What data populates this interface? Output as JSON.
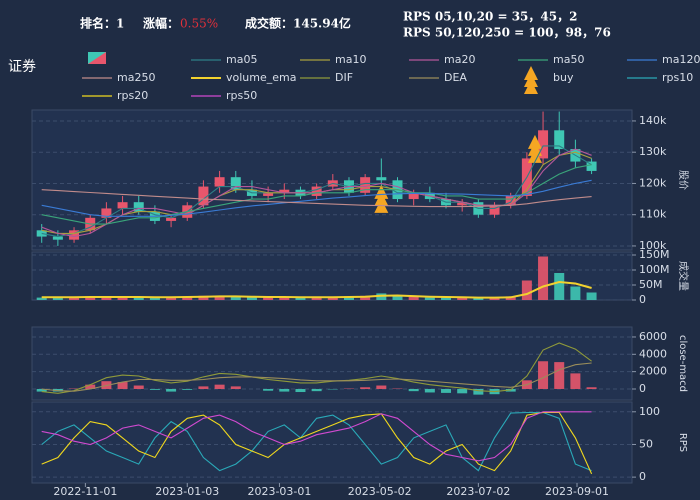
{
  "header": {
    "title": "证券",
    "rank": "排名：1",
    "change_label": "涨幅：",
    "change": "0.55%",
    "turnover": "成交额：145.94亿",
    "rps_short": "RPS 05,10,20 = 35，45，2",
    "rps_long": "RPS 50,120,250 = 100，98，76"
  },
  "chart_data": {
    "type": "stock",
    "x": [
      "2022-10-05",
      "2022-10-15",
      "2022-10-25",
      "2022-11-04",
      "2022-11-14",
      "2022-11-24",
      "2022-12-04",
      "2022-12-14",
      "2022-12-24",
      "2023-01-03",
      "2023-01-13",
      "2023-01-23",
      "2023-02-02",
      "2023-02-12",
      "2023-02-22",
      "2023-03-04",
      "2023-03-14",
      "2023-03-24",
      "2023-04-03",
      "2023-04-13",
      "2023-04-23",
      "2023-05-03",
      "2023-05-13",
      "2023-05-23",
      "2023-06-02",
      "2023-06-12",
      "2023-06-22",
      "2023-07-02",
      "2023-07-12",
      "2023-07-22",
      "2023-08-01",
      "2023-08-11",
      "2023-08-21",
      "2023-08-31",
      "2023-09-10"
    ],
    "xlim": [
      "2022-09-29",
      "2023-10-05"
    ],
    "xticks": [
      "2022-11-01",
      "2023-01-03",
      "2023-03-01",
      "2023-05-02",
      "2023-07-02",
      "2023-09-01"
    ],
    "panels": [
      {
        "type": "candlestick",
        "ylabel": "股价",
        "ylim": [
          98700,
          143500
        ],
        "yticks": [
          {
            "value": 100000,
            "label": "100k"
          },
          {
            "value": 110000,
            "label": "110k"
          },
          {
            "value": 120000,
            "label": "120k"
          },
          {
            "value": 130000,
            "label": "130k"
          },
          {
            "value": 140000,
            "label": "140k"
          }
        ],
        "up_color": "#e8566c",
        "down_color": "#3fc7b4",
        "open": [
          105000,
          103000,
          102000,
          105000,
          109000,
          112000,
          114000,
          111000,
          108000,
          109000,
          113000,
          119000,
          122000,
          118000,
          116000,
          117000,
          118000,
          116000,
          119000,
          121000,
          117000,
          122000,
          121000,
          115000,
          117000,
          115000,
          113000,
          114000,
          110000,
          113000,
          116000,
          128000,
          137000,
          131000,
          127000
        ],
        "high": [
          107000,
          105000,
          106000,
          110000,
          114000,
          116000,
          116000,
          113000,
          110000,
          114000,
          121000,
          124000,
          124000,
          121000,
          119000,
          120000,
          119000,
          120000,
          123000,
          122000,
          123000,
          128000,
          122000,
          118000,
          119000,
          117000,
          115000,
          115000,
          114000,
          117000,
          130000,
          143000,
          143000,
          134000,
          128000
        ],
        "low": [
          101000,
          100000,
          101000,
          104000,
          107000,
          110000,
          110000,
          107000,
          106000,
          108000,
          112000,
          117000,
          117000,
          115000,
          114000,
          115000,
          115000,
          115000,
          118000,
          116000,
          116000,
          119000,
          114000,
          113000,
          114000,
          112000,
          111000,
          109000,
          109000,
          112000,
          115000,
          126000,
          129000,
          125000,
          123000
        ],
        "close": [
          103000,
          102000,
          105000,
          109000,
          112000,
          114000,
          111000,
          108000,
          109000,
          113000,
          119000,
          122000,
          118000,
          116000,
          117000,
          118000,
          116000,
          119000,
          121000,
          117000,
          122000,
          121000,
          115000,
          117000,
          115000,
          113000,
          114000,
          110000,
          113000,
          116000,
          128000,
          137000,
          131000,
          127000,
          124000
        ],
        "series": [
          {
            "name": "ma05",
            "color": "#2e7f86",
            "values": [
              104000,
              103000,
              104000,
              106000,
              109000,
              112000,
              112000,
              110000,
              109000,
              111000,
              115000,
              119000,
              119000,
              117000,
              117000,
              117000,
              117000,
              118000,
              120000,
              119000,
              120000,
              120000,
              117000,
              117000,
              116000,
              114000,
              114000,
              112000,
              112000,
              114000,
              122000,
              132000,
              132000,
              129000,
              126000
            ]
          },
          {
            "name": "ma10",
            "color": "#a8a03e",
            "values": [
              105000,
              104000,
              104000,
              105000,
              107000,
              110000,
              111000,
              111000,
              110000,
              110000,
              113000,
              116000,
              118000,
              118000,
              117000,
              117000,
              117000,
              117000,
              118000,
              118000,
              119000,
              119000,
              118000,
              117000,
              116000,
              115000,
              114000,
              113000,
              113000,
              113000,
              118000,
              126000,
              129000,
              130000,
              128000
            ]
          },
          {
            "name": "ma20",
            "color": "#b4579a",
            "values": [
              106000,
              104000,
              103000,
              104000,
              107000,
              110000,
              112000,
              112000,
              111000,
              110000,
              113000,
              116000,
              119000,
              119000,
              118000,
              117000,
              117000,
              117000,
              118000,
              119000,
              119000,
              120000,
              119000,
              117000,
              116000,
              115000,
              114000,
              113000,
              113000,
              113000,
              117000,
              124000,
              129000,
              131000,
              129000
            ]
          },
          {
            "name": "ma50",
            "color": "#3aa57a",
            "values": [
              110000,
              109000,
              108000,
              107000,
              107000,
              108000,
              109000,
              109000,
              110000,
              111000,
              112000,
              113000,
              114000,
              115000,
              115000,
              116000,
              116000,
              117000,
              117000,
              117000,
              118000,
              118000,
              118000,
              117000,
              117000,
              116000,
              116000,
              115000,
              115000,
              115000,
              117000,
              120000,
              123000,
              125000,
              126000
            ]
          },
          {
            "name": "ma120",
            "color": "#3a7bd5",
            "values": [
              113000,
              112000,
              111000,
              110000,
              109500,
              109500,
              109500,
              109500,
              109800,
              110200,
              110800,
              111500,
              112200,
              112800,
              113300,
              113800,
              114300,
              114800,
              115300,
              115700,
              116100,
              116500,
              116700,
              116800,
              116800,
              116700,
              116600,
              116400,
              116200,
              116000,
              116500,
              117500,
              118800,
              120000,
              121000
            ]
          },
          {
            "name": "ma250",
            "color": "#c08b8b",
            "values": [
              118000,
              117700,
              117400,
              117100,
              116800,
              116500,
              116200,
              115900,
              115600,
              115300,
              115000,
              114800,
              114600,
              114400,
              114200,
              114000,
              113800,
              113600,
              113400,
              113200,
              113000,
              112900,
              112800,
              112700,
              112600,
              112600,
              112600,
              112700,
              112800,
              113000,
              113500,
              114200,
              114800,
              115300,
              115800
            ]
          }
        ]
      },
      {
        "type": "bar",
        "ylabel": "成交量",
        "ylim": [
          0,
          160000000
        ],
        "yticks": [
          0,
          {
            "value": 50000000,
            "label": "50M"
          },
          {
            "value": 100000000,
            "label": "100M"
          },
          {
            "value": 150000000,
            "label": "150M"
          }
        ],
        "values": [
          8000000,
          10000000,
          9000000,
          12000000,
          11000000,
          10000000,
          9000000,
          8000000,
          9000000,
          12000000,
          14000000,
          13000000,
          11000000,
          10000000,
          9000000,
          9000000,
          8000000,
          9000000,
          10000000,
          12000000,
          14000000,
          22000000,
          15000000,
          10000000,
          8000000,
          8000000,
          7000000,
          7000000,
          8000000,
          12000000,
          65000000,
          145000000,
          90000000,
          45000000,
          25000000
        ],
        "series": [
          {
            "name": "volume_ema",
            "color": "#f2d22e",
            "values": [
              9000000,
              9000000,
              9000000,
              10000000,
              10000000,
              10000000,
              10000000,
              9000000,
              9000000,
              10000000,
              11000000,
              12000000,
              12000000,
              11000000,
              10000000,
              10000000,
              9000000,
              9000000,
              9000000,
              10000000,
              11000000,
              14000000,
              15000000,
              13000000,
              11000000,
              10000000,
              9000000,
              8000000,
              8000000,
              9000000,
              20000000,
              45000000,
              60000000,
              55000000,
              40000000
            ]
          }
        ]
      },
      {
        "type": "bar",
        "ylabel": "close-macd",
        "ylim": [
          -1270,
          7150
        ],
        "yticks": [
          0,
          2000,
          4000,
          6000
        ],
        "values": [
          -300,
          -300,
          50,
          500,
          900,
          800,
          400,
          -100,
          -300,
          -100,
          300,
          500,
          300,
          0,
          -200,
          -300,
          -350,
          -250,
          -50,
          50,
          200,
          400,
          50,
          -250,
          -400,
          -450,
          -500,
          -650,
          -600,
          -300,
          1000,
          3200,
          3100,
          1800,
          200
        ],
        "series": [
          {
            "name": "DIF",
            "color": "#8f9a3a",
            "values": [
              -300,
              -500,
              -200,
              500,
              1300,
              1600,
              1500,
              1000,
              700,
              900,
              1400,
              1800,
              1700,
              1400,
              1100,
              900,
              700,
              700,
              900,
              1000,
              1200,
              1500,
              1200,
              800,
              500,
              300,
              100,
              -200,
              -300,
              -100,
              1500,
              4500,
              5300,
              4600,
              3200
            ]
          },
          {
            "name": "DEA",
            "color": "#9a8d5a",
            "values": [
              0,
              -200,
              -250,
              0,
              400,
              800,
              1100,
              1100,
              1000,
              1000,
              1100,
              1300,
              1400,
              1400,
              1300,
              1200,
              1050,
              950,
              950,
              950,
              1000,
              1100,
              1150,
              1050,
              900,
              750,
              600,
              450,
              300,
              200,
              500,
              1300,
              2200,
              2800,
              3000
            ]
          }
        ]
      },
      {
        "type": "line",
        "ylabel": "RPS",
        "ylim": [
          -9,
          115
        ],
        "yticks": [
          0,
          50,
          100
        ],
        "series": [
          {
            "name": "rps10",
            "color": "#2aa9b8",
            "values": [
              50,
              70,
              80,
              60,
              40,
              30,
              20,
              60,
              85,
              70,
              30,
              10,
              20,
              40,
              70,
              80,
              60,
              90,
              95,
              80,
              50,
              20,
              30,
              60,
              70,
              80,
              30,
              10,
              60,
              98,
              99,
              99,
              90,
              20,
              10
            ]
          },
          {
            "name": "rps20",
            "color": "#f0d81e",
            "values": [
              20,
              30,
              60,
              85,
              80,
              60,
              40,
              30,
              70,
              90,
              95,
              80,
              50,
              40,
              30,
              50,
              60,
              70,
              80,
              90,
              95,
              97,
              60,
              30,
              20,
              40,
              50,
              20,
              10,
              40,
              95,
              99,
              99,
              60,
              5
            ]
          },
          {
            "name": "rps50",
            "color": "#d04ad0",
            "values": [
              70,
              65,
              55,
              50,
              60,
              75,
              80,
              70,
              60,
              75,
              90,
              95,
              85,
              70,
              60,
              50,
              55,
              65,
              70,
              75,
              85,
              97,
              90,
              70,
              50,
              35,
              30,
              25,
              30,
              50,
              90,
              100,
              100,
              100,
              100
            ]
          }
        ]
      }
    ],
    "buy": {
      "name": "buy",
      "color": "#f5a623",
      "x": [
        "2023-05-03",
        "2023-08-06"
      ],
      "values": [
        112500,
        128500
      ]
    }
  }
}
